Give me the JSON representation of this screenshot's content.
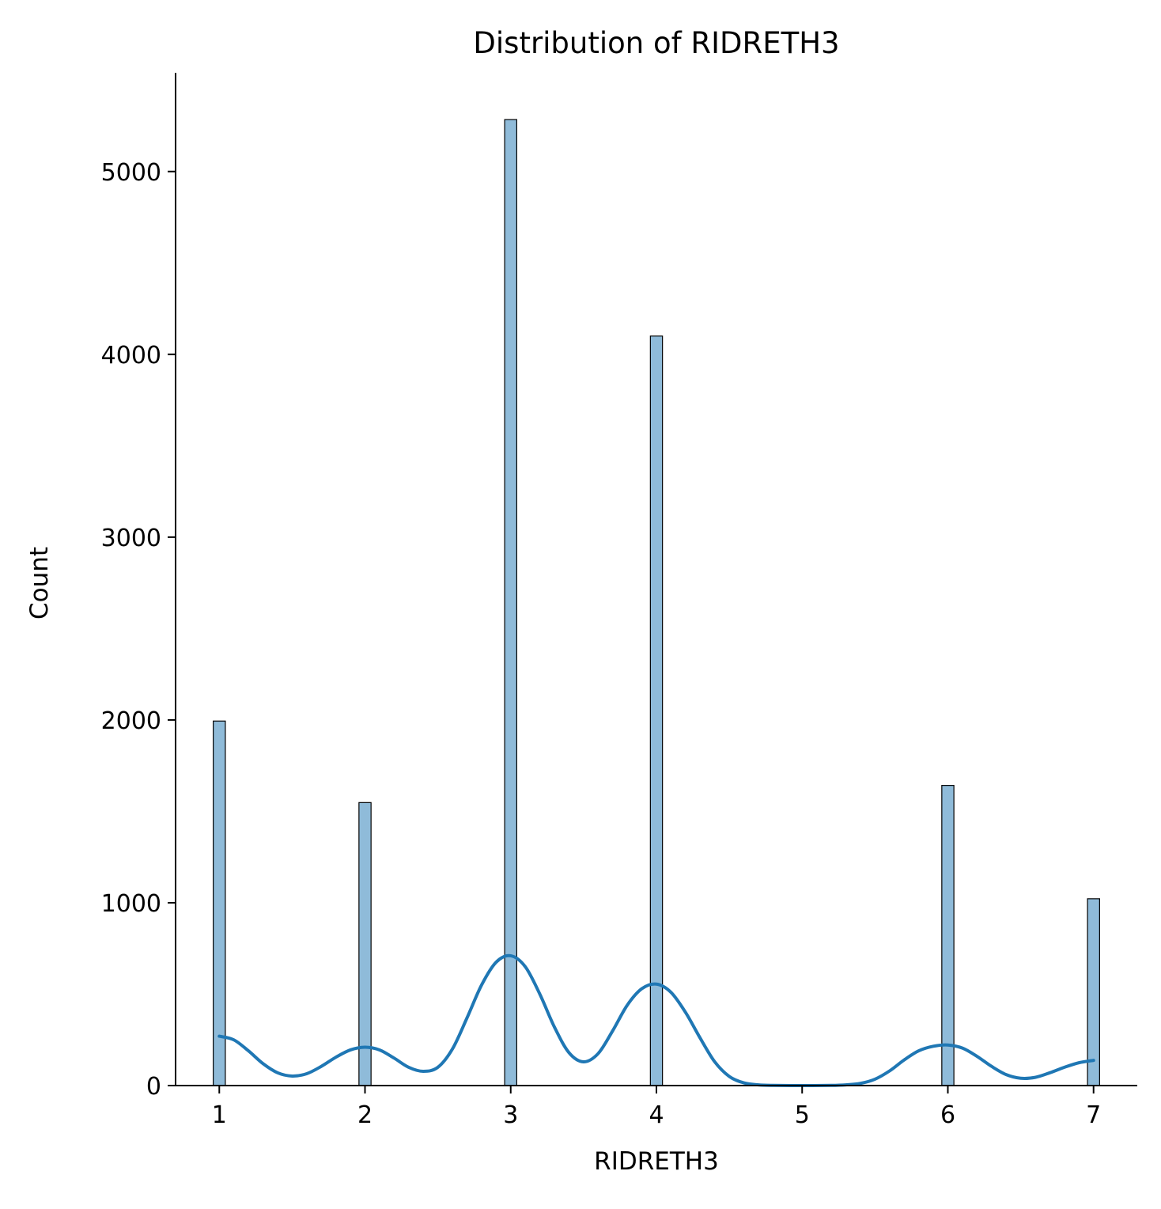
{
  "chart_data": {
    "type": "bar",
    "title": "Distribution of RIDRETH3",
    "xlabel": "RIDRETH3",
    "ylabel": "Count",
    "x_ticks": [
      "1",
      "2",
      "3",
      "4",
      "5",
      "6",
      "7"
    ],
    "y_ticks": [
      "0",
      "1000",
      "2000",
      "3000",
      "4000",
      "5000"
    ],
    "xlim": [
      0.7,
      7.3
    ],
    "ylim": [
      0,
      5540
    ],
    "bin_width": 0.083,
    "series": [
      {
        "values": [
          {
            "x": 1,
            "count": 1994
          },
          {
            "x": 2,
            "count": 1548
          },
          {
            "x": 3,
            "count": 5284
          },
          {
            "x": 4,
            "count": 4100
          },
          {
            "x": 6,
            "count": 1642
          },
          {
            "x": 7,
            "count": 1022
          }
        ]
      }
    ],
    "kde_curve": [
      {
        "x": 1.0,
        "y": 270
      },
      {
        "x": 1.1,
        "y": 250
      },
      {
        "x": 1.2,
        "y": 190
      },
      {
        "x": 1.3,
        "y": 120
      },
      {
        "x": 1.4,
        "y": 70
      },
      {
        "x": 1.5,
        "y": 52
      },
      {
        "x": 1.6,
        "y": 65
      },
      {
        "x": 1.7,
        "y": 105
      },
      {
        "x": 1.8,
        "y": 155
      },
      {
        "x": 1.9,
        "y": 195
      },
      {
        "x": 2.0,
        "y": 210
      },
      {
        "x": 2.1,
        "y": 195
      },
      {
        "x": 2.2,
        "y": 150
      },
      {
        "x": 2.3,
        "y": 100
      },
      {
        "x": 2.4,
        "y": 78
      },
      {
        "x": 2.5,
        "y": 100
      },
      {
        "x": 2.6,
        "y": 200
      },
      {
        "x": 2.7,
        "y": 370
      },
      {
        "x": 2.8,
        "y": 550
      },
      {
        "x": 2.9,
        "y": 675
      },
      {
        "x": 3.0,
        "y": 710
      },
      {
        "x": 3.1,
        "y": 650
      },
      {
        "x": 3.2,
        "y": 500
      },
      {
        "x": 3.3,
        "y": 320
      },
      {
        "x": 3.4,
        "y": 180
      },
      {
        "x": 3.5,
        "y": 130
      },
      {
        "x": 3.6,
        "y": 175
      },
      {
        "x": 3.7,
        "y": 300
      },
      {
        "x": 3.8,
        "y": 440
      },
      {
        "x": 3.9,
        "y": 530
      },
      {
        "x": 4.0,
        "y": 555
      },
      {
        "x": 4.1,
        "y": 510
      },
      {
        "x": 4.2,
        "y": 400
      },
      {
        "x": 4.3,
        "y": 260
      },
      {
        "x": 4.4,
        "y": 130
      },
      {
        "x": 4.5,
        "y": 50
      },
      {
        "x": 4.6,
        "y": 15
      },
      {
        "x": 4.7,
        "y": 4
      },
      {
        "x": 4.8,
        "y": 1
      },
      {
        "x": 5.0,
        "y": 0
      },
      {
        "x": 5.2,
        "y": 1
      },
      {
        "x": 5.3,
        "y": 4
      },
      {
        "x": 5.4,
        "y": 12
      },
      {
        "x": 5.5,
        "y": 35
      },
      {
        "x": 5.6,
        "y": 80
      },
      {
        "x": 5.7,
        "y": 140
      },
      {
        "x": 5.8,
        "y": 190
      },
      {
        "x": 5.9,
        "y": 215
      },
      {
        "x": 6.0,
        "y": 222
      },
      {
        "x": 6.1,
        "y": 205
      },
      {
        "x": 6.2,
        "y": 160
      },
      {
        "x": 6.3,
        "y": 105
      },
      {
        "x": 6.4,
        "y": 60
      },
      {
        "x": 6.5,
        "y": 40
      },
      {
        "x": 6.6,
        "y": 45
      },
      {
        "x": 6.7,
        "y": 70
      },
      {
        "x": 6.8,
        "y": 100
      },
      {
        "x": 6.9,
        "y": 125
      },
      {
        "x": 7.0,
        "y": 138
      }
    ],
    "grid": false,
    "legend": "none",
    "colors": {
      "bar_fill": "#1f77b4",
      "bar_fill_opacity": 0.5,
      "bar_edge": "#000000",
      "kde_line": "#1f77b4",
      "axis": "#000000"
    }
  }
}
